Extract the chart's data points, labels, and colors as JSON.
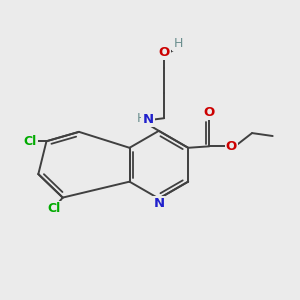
{
  "background_color": "#ebebeb",
  "atom_colors": {
    "C": "#000000",
    "N": "#2020cc",
    "O": "#cc0000",
    "Cl": "#00aa00",
    "H": "#6b8e8e"
  },
  "bond_color": "#404040",
  "bond_lw": 1.4,
  "double_lw": 1.3,
  "figsize": [
    3.0,
    3.0
  ],
  "dpi": 100,
  "font_size": 9.5
}
